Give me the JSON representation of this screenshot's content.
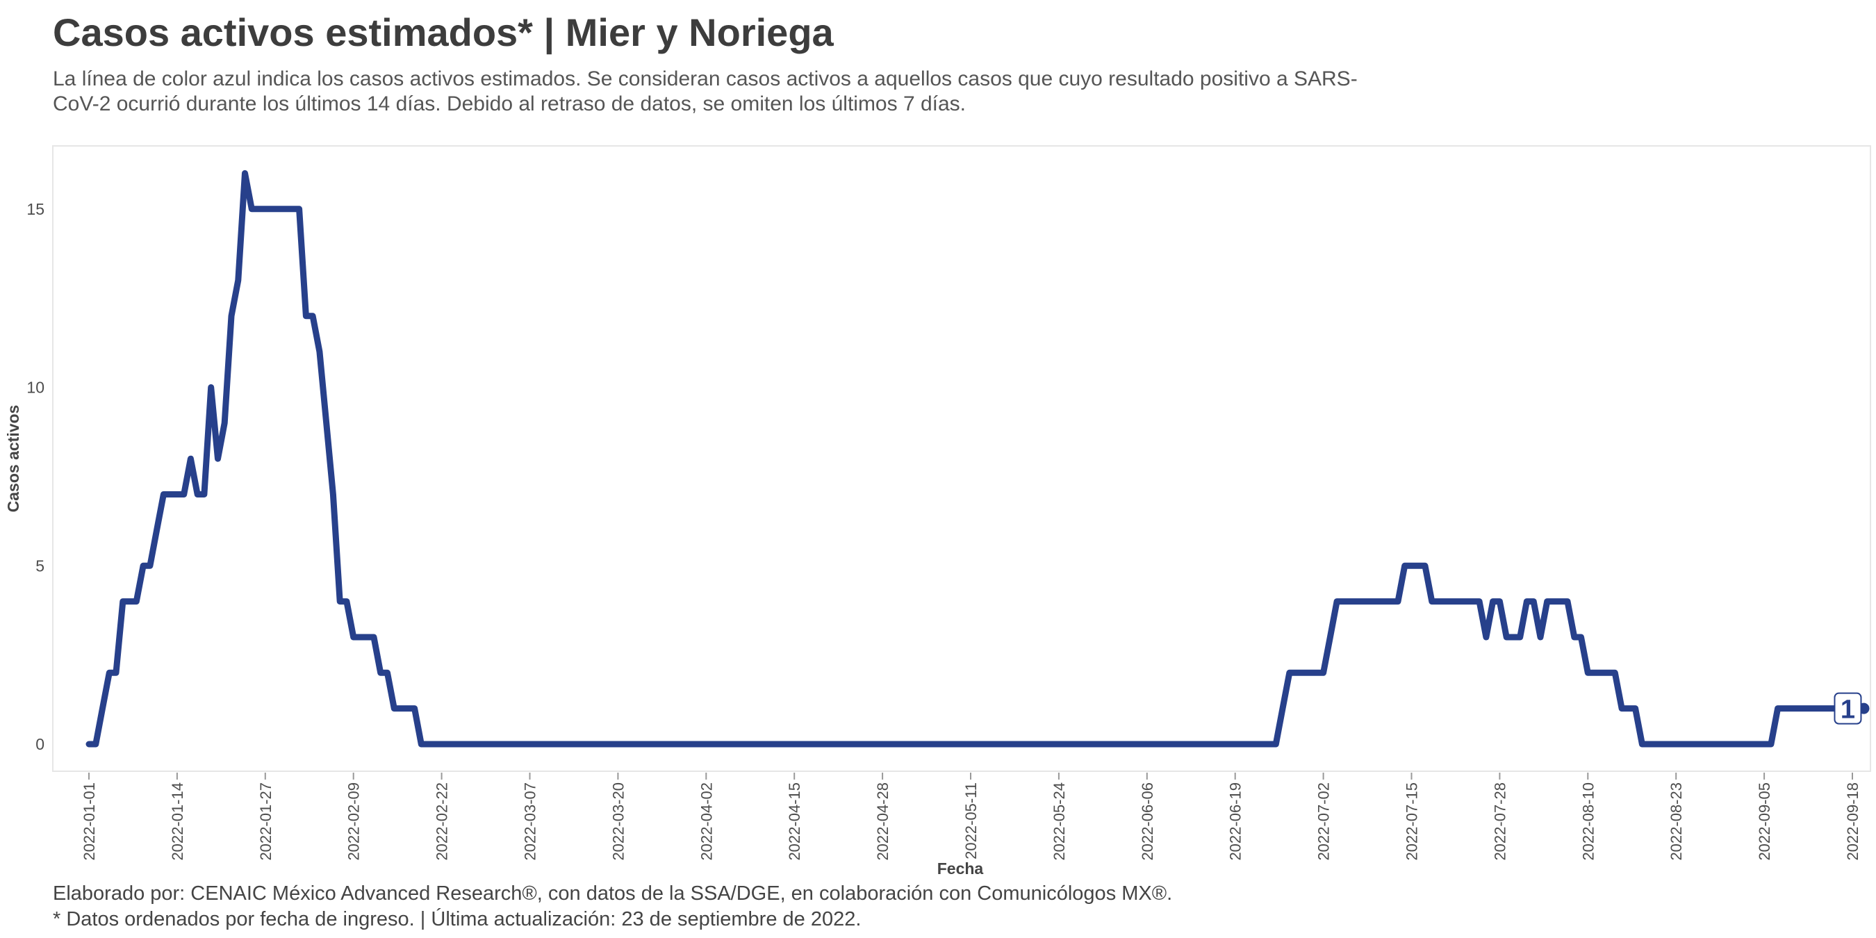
{
  "header": {
    "title": "Casos activos estimados* | Mier y Noriega",
    "subtitle": "La línea de color azul indica los casos activos estimados. Se consideran casos activos a aquellos casos que cuyo resultado positivo a SARS-CoV-2 ocurrió durante los últimos 14 días. Debido al retraso de datos, se omiten los últimos 7 días."
  },
  "footer": {
    "line1": "Elaborado por: CENAIC México Advanced Research®, con datos de la SSA/DGE, en colaboración con Comunicólogos MX®.",
    "line2": "* Datos ordenados por fecha de ingreso. | Última actualización: 23 de septiembre de 2022."
  },
  "colors": {
    "line": "#27408b",
    "panel_border": "#e6e6e6",
    "text": "#444444"
  },
  "chart_data": {
    "type": "line",
    "xlabel": "Fecha",
    "ylabel": "Casos activos",
    "x_start": "2022-01-01",
    "xlim": [
      "2022-01-01",
      "2022-09-18"
    ],
    "ylim": [
      0,
      16
    ],
    "x_ticks": [
      "2022-01-01",
      "2022-01-14",
      "2022-01-27",
      "2022-02-09",
      "2022-02-22",
      "2022-03-07",
      "2022-03-20",
      "2022-04-02",
      "2022-04-15",
      "2022-04-28",
      "2022-05-11",
      "2022-05-24",
      "2022-06-06",
      "2022-06-19",
      "2022-07-02",
      "2022-07-15",
      "2022-07-28",
      "2022-08-10",
      "2022-08-23",
      "2022-09-05",
      "2022-09-18"
    ],
    "y_ticks": [
      "0",
      "5",
      "10",
      "15"
    ],
    "grid": false,
    "end_label": "1",
    "series": [
      {
        "points": [
          [
            "2022-01-01",
            0
          ],
          [
            "2022-01-02",
            0
          ],
          [
            "2022-01-03",
            1
          ],
          [
            "2022-01-04",
            2
          ],
          [
            "2022-01-05",
            2
          ],
          [
            "2022-01-06",
            4
          ],
          [
            "2022-01-07",
            4
          ],
          [
            "2022-01-08",
            4
          ],
          [
            "2022-01-09",
            5
          ],
          [
            "2022-01-10",
            5
          ],
          [
            "2022-01-11",
            6
          ],
          [
            "2022-01-12",
            7
          ],
          [
            "2022-01-13",
            7
          ],
          [
            "2022-01-14",
            7
          ],
          [
            "2022-01-15",
            7
          ],
          [
            "2022-01-16",
            8
          ],
          [
            "2022-01-17",
            7
          ],
          [
            "2022-01-18",
            7
          ],
          [
            "2022-01-19",
            10
          ],
          [
            "2022-01-20",
            8
          ],
          [
            "2022-01-21",
            9
          ],
          [
            "2022-01-22",
            12
          ],
          [
            "2022-01-23",
            13
          ],
          [
            "2022-01-24",
            16
          ],
          [
            "2022-01-25",
            15
          ],
          [
            "2022-01-26",
            15
          ],
          [
            "2022-01-27",
            15
          ],
          [
            "2022-01-28",
            15
          ],
          [
            "2022-01-29",
            15
          ],
          [
            "2022-01-30",
            15
          ],
          [
            "2022-01-31",
            15
          ],
          [
            "2022-02-01",
            15
          ],
          [
            "2022-02-02",
            12
          ],
          [
            "2022-02-03",
            12
          ],
          [
            "2022-02-04",
            11
          ],
          [
            "2022-02-05",
            9
          ],
          [
            "2022-02-06",
            7
          ],
          [
            "2022-02-07",
            4
          ],
          [
            "2022-02-08",
            4
          ],
          [
            "2022-02-09",
            3
          ],
          [
            "2022-02-10",
            3
          ],
          [
            "2022-02-11",
            3
          ],
          [
            "2022-02-12",
            3
          ],
          [
            "2022-02-13",
            2
          ],
          [
            "2022-02-14",
            2
          ],
          [
            "2022-02-15",
            1
          ],
          [
            "2022-02-16",
            1
          ],
          [
            "2022-02-17",
            1
          ],
          [
            "2022-02-18",
            1
          ],
          [
            "2022-02-19",
            0
          ],
          [
            "2022-06-25",
            0
          ],
          [
            "2022-06-26",
            1
          ],
          [
            "2022-06-27",
            2
          ],
          [
            "2022-06-28",
            2
          ],
          [
            "2022-07-01",
            2
          ],
          [
            "2022-07-02",
            2
          ],
          [
            "2022-07-03",
            3
          ],
          [
            "2022-07-04",
            4
          ],
          [
            "2022-07-05",
            4
          ],
          [
            "2022-07-12",
            4
          ],
          [
            "2022-07-13",
            4
          ],
          [
            "2022-07-14",
            5
          ],
          [
            "2022-07-15",
            5
          ],
          [
            "2022-07-16",
            5
          ],
          [
            "2022-07-17",
            5
          ],
          [
            "2022-07-18",
            4
          ],
          [
            "2022-07-19",
            4
          ],
          [
            "2022-07-24",
            4
          ],
          [
            "2022-07-25",
            4
          ],
          [
            "2022-07-26",
            3
          ],
          [
            "2022-07-27",
            4
          ],
          [
            "2022-07-28",
            4
          ],
          [
            "2022-07-29",
            3
          ],
          [
            "2022-07-30",
            3
          ],
          [
            "2022-07-31",
            3
          ],
          [
            "2022-08-01",
            4
          ],
          [
            "2022-08-02",
            4
          ],
          [
            "2022-08-03",
            3
          ],
          [
            "2022-08-04",
            4
          ],
          [
            "2022-08-05",
            4
          ],
          [
            "2022-08-06",
            4
          ],
          [
            "2022-08-07",
            4
          ],
          [
            "2022-08-08",
            3
          ],
          [
            "2022-08-09",
            3
          ],
          [
            "2022-08-10",
            2
          ],
          [
            "2022-08-11",
            2
          ],
          [
            "2022-08-14",
            2
          ],
          [
            "2022-08-15",
            1
          ],
          [
            "2022-08-16",
            1
          ],
          [
            "2022-08-17",
            1
          ],
          [
            "2022-08-18",
            0
          ],
          [
            "2022-09-05",
            0
          ],
          [
            "2022-09-06",
            0
          ],
          [
            "2022-09-07",
            1
          ],
          [
            "2022-09-08",
            1
          ],
          [
            "2022-09-16",
            1
          ]
        ]
      }
    ]
  }
}
